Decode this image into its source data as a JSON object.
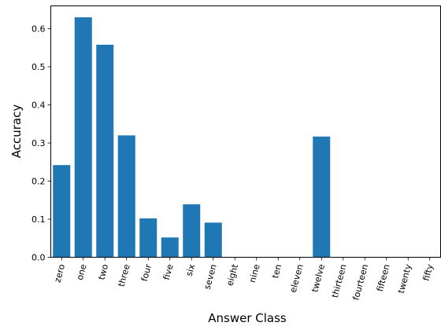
{
  "chart_data": {
    "type": "bar",
    "title": "",
    "xlabel": "Answer Class",
    "ylabel": "Accuracy",
    "ylim": [
      0,
      0.66
    ],
    "yticks": [
      "0.0",
      "0.1",
      "0.2",
      "0.3",
      "0.4",
      "0.5",
      "0.6"
    ],
    "grid": false,
    "bar_color": "#1f77b4",
    "categories": [
      "zero",
      "one",
      "two",
      "three",
      "four",
      "five",
      "six",
      "seven",
      "eight",
      "nine",
      "ten",
      "eleven",
      "twelve",
      "thirteen",
      "fourteen",
      "fifteen",
      "twenty",
      "fifty"
    ],
    "values": [
      0.242,
      0.63,
      0.558,
      0.32,
      0.102,
      0.052,
      0.139,
      0.091,
      0,
      0,
      0,
      0,
      0.317,
      0,
      0,
      0,
      0,
      0
    ]
  }
}
